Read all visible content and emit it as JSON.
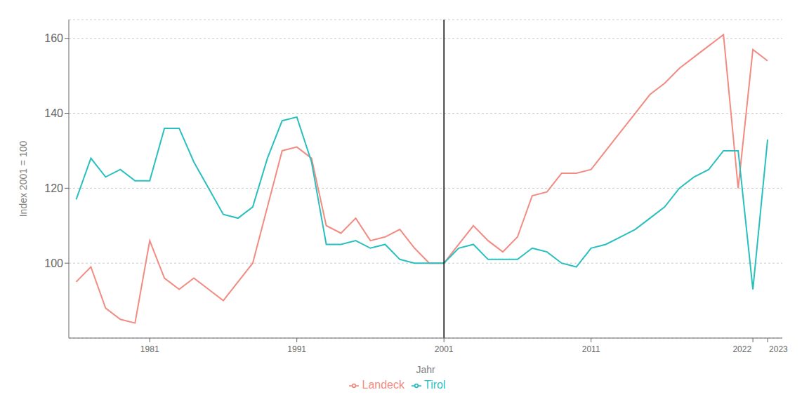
{
  "chart_data": {
    "type": "line",
    "title": "",
    "xlabel": "Jahr",
    "ylabel": "Index 2001 = 100",
    "x": [
      1976,
      1977,
      1978,
      1979,
      1980,
      1981,
      1982,
      1983,
      1984,
      1985,
      1986,
      1987,
      1988,
      1989,
      1990,
      1991,
      1992,
      1993,
      1994,
      1995,
      1996,
      1997,
      1998,
      1999,
      2000,
      2001,
      2002,
      2003,
      2004,
      2005,
      2006,
      2007,
      2008,
      2009,
      2010,
      2011,
      2012,
      2013,
      2014,
      2015,
      2016,
      2017,
      2018,
      2019,
      2020,
      2021,
      2022,
      2023
    ],
    "series": [
      {
        "name": "Landeck",
        "color": "#F28B82",
        "values": [
          95,
          99,
          88,
          85,
          84,
          106,
          96,
          93,
          96,
          93,
          90,
          95,
          100,
          115,
          130,
          131,
          128,
          110,
          108,
          112,
          106,
          107,
          109,
          104,
          100,
          100,
          105,
          110,
          106,
          103,
          107,
          118,
          119,
          124,
          124,
          125,
          130,
          135,
          140,
          145,
          148,
          152,
          155,
          158,
          161,
          120,
          157,
          154
        ]
      },
      {
        "name": "Tirol",
        "color": "#2ABFBF",
        "values": [
          117,
          128,
          123,
          125,
          122,
          122,
          136,
          136,
          127,
          120,
          113,
          112,
          115,
          128,
          138,
          139,
          127,
          105,
          105,
          106,
          104,
          105,
          101,
          100,
          100,
          100,
          104,
          105,
          101,
          101,
          101,
          104,
          103,
          100,
          99,
          104,
          105,
          107,
          109,
          112,
          115,
          120,
          123,
          125,
          130,
          130,
          93,
          133
        ]
      }
    ],
    "xlim": [
      1975.5,
      2024
    ],
    "xticks": [
      1981,
      1991,
      2001,
      2011,
      2022,
      2023
    ],
    "ylim": [
      80,
      165
    ],
    "yticks": [
      100,
      120,
      140,
      160
    ],
    "vline": {
      "x": 2001,
      "color": "#000000"
    },
    "grid": true,
    "legend": "bottom"
  }
}
